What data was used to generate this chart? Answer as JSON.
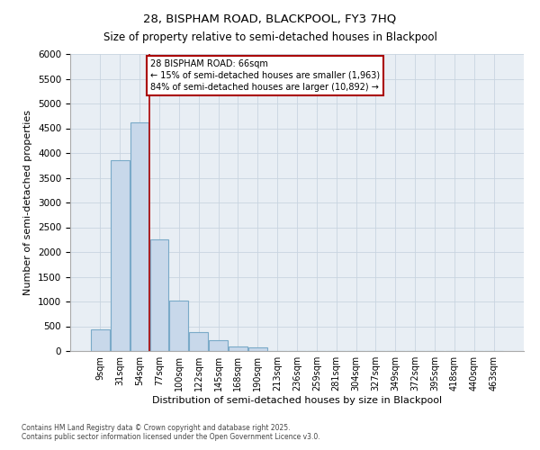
{
  "title1": "28, BISPHAM ROAD, BLACKPOOL, FY3 7HQ",
  "title2": "Size of property relative to semi-detached houses in Blackpool",
  "xlabel": "Distribution of semi-detached houses by size in Blackpool",
  "ylabel": "Number of semi-detached properties",
  "categories": [
    "9sqm",
    "31sqm",
    "54sqm",
    "77sqm",
    "100sqm",
    "122sqm",
    "145sqm",
    "168sqm",
    "190sqm",
    "213sqm",
    "236sqm",
    "259sqm",
    "281sqm",
    "304sqm",
    "327sqm",
    "349sqm",
    "372sqm",
    "395sqm",
    "418sqm",
    "440sqm",
    "463sqm"
  ],
  "bar_heights": [
    430,
    3850,
    4620,
    2250,
    1020,
    390,
    220,
    100,
    70,
    0,
    0,
    0,
    0,
    0,
    0,
    0,
    0,
    0,
    0,
    0,
    0
  ],
  "bar_color": "#c8d8ea",
  "bar_edge_color": "#7aaac8",
  "grid_color": "#c8d4e0",
  "background_color": "#e8eef4",
  "vline_x": 2.5,
  "vline_color": "#aa0000",
  "annotation_text": "28 BISPHAM ROAD: 66sqm\n← 15% of semi-detached houses are smaller (1,963)\n84% of semi-detached houses are larger (10,892) →",
  "annotation_box_color": "#aa0000",
  "ylim": [
    0,
    6000
  ],
  "yticks": [
    0,
    500,
    1000,
    1500,
    2000,
    2500,
    3000,
    3500,
    4000,
    4500,
    5000,
    5500,
    6000
  ],
  "footnote1": "Contains HM Land Registry data © Crown copyright and database right 2025.",
  "footnote2": "Contains public sector information licensed under the Open Government Licence v3.0."
}
